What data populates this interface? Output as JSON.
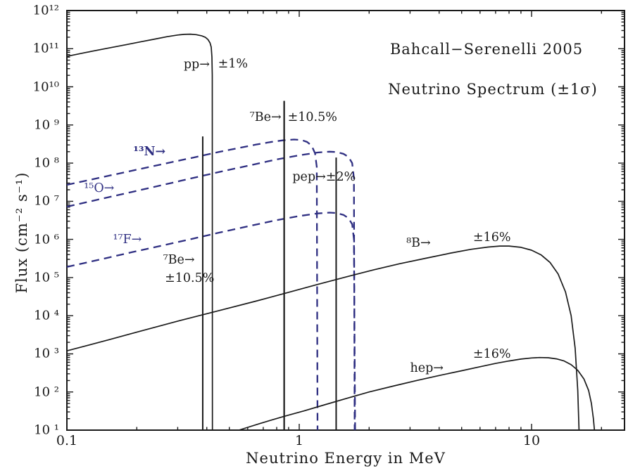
{
  "chart_data": {
    "type": "line",
    "title": "Bahcall−Serenelli 2005",
    "subtitle": "Neutrino Spectrum (±1σ)",
    "xlabel": "Neutrino Energy in MeV",
    "ylabel": "Flux (cm⁻² s⁻¹)",
    "x_scale": "log",
    "y_scale": "log",
    "xlim": [
      0.1,
      25.12
    ],
    "ylim": [
      10.0,
      1000000000000.0
    ],
    "grid": false,
    "legend": "none (in-plot annotations)",
    "colors": {
      "axis": "#1a1a1a",
      "solid_series": "#1a1a1a",
      "cno_series": "#2f2f82"
    },
    "x_ticks": [
      {
        "v": 0.1,
        "label": "0.1"
      },
      {
        "v": 1,
        "label": "1"
      },
      {
        "v": 10,
        "label": "10"
      }
    ],
    "y_ticks": [
      {
        "e": 12,
        "label": "10¹²"
      },
      {
        "e": 11,
        "label": "10¹¹"
      },
      {
        "e": 10,
        "label": "10¹⁰"
      },
      {
        "e": 9,
        "label": "10 ⁹"
      },
      {
        "e": 8,
        "label": "10 ⁸"
      },
      {
        "e": 7,
        "label": "10 ⁷"
      },
      {
        "e": 6,
        "label": "10 ⁶"
      },
      {
        "e": 5,
        "label": "10 ⁵"
      },
      {
        "e": 4,
        "label": "10 ⁴"
      },
      {
        "e": 3,
        "label": "10 ³"
      },
      {
        "e": 2,
        "label": "10 ²"
      },
      {
        "e": 1,
        "label": "10 ¹"
      }
    ],
    "series": [
      {
        "name": "n13",
        "label": "¹³N",
        "style": "dashed",
        "color": "#2f2f82",
        "width": 2.3,
        "uncertainty": null,
        "points": [
          [
            0.1,
            27000000.0
          ],
          [
            0.14,
            42000000.0
          ],
          [
            0.19,
            63000000.0
          ],
          [
            0.26,
            95000000.0
          ],
          [
            0.35,
            140000000.0
          ],
          [
            0.45,
            195000000.0
          ],
          [
            0.55,
            250000000.0
          ],
          [
            0.65,
            305000000.0
          ],
          [
            0.75,
            355000000.0
          ],
          [
            0.85,
            395000000.0
          ],
          [
            0.95,
            415000000.0
          ],
          [
            1.02,
            405000000.0
          ],
          [
            1.08,
            360000000.0
          ],
          [
            1.13,
            290000000.0
          ],
          [
            1.17,
            180000000.0
          ],
          [
            1.19,
            80000000.0
          ],
          [
            1.199,
            10
          ]
        ]
      },
      {
        "name": "o15",
        "label": "¹⁵O",
        "style": "dashed",
        "color": "#2f2f82",
        "width": 2.3,
        "uncertainty": null,
        "points": [
          [
            0.1,
            7200000.0
          ],
          [
            0.14,
            11500000.0
          ],
          [
            0.19,
            17500000.0
          ],
          [
            0.26,
            27000000.0
          ],
          [
            0.35,
            41000000.0
          ],
          [
            0.45,
            58000000.0
          ],
          [
            0.6,
            85000000.0
          ],
          [
            0.8,
            125000000.0
          ],
          [
            1.0,
            160000000.0
          ],
          [
            1.2,
            190000000.0
          ],
          [
            1.35,
            200000000.0
          ],
          [
            1.45,
            195000000.0
          ],
          [
            1.55,
            175000000.0
          ],
          [
            1.63,
            145000000.0
          ],
          [
            1.69,
            100000000.0
          ],
          [
            1.72,
            40000000.0
          ],
          [
            1.732,
            10
          ]
        ]
      },
      {
        "name": "f17",
        "label": "¹⁷F",
        "style": "dashed",
        "color": "#2f2f82",
        "width": 2.3,
        "uncertainty": null,
        "points": [
          [
            0.1,
            190000.0
          ],
          [
            0.14,
            300000.0
          ],
          [
            0.19,
            460000.0
          ],
          [
            0.26,
            700000.0
          ],
          [
            0.35,
            1050000.0
          ],
          [
            0.45,
            1500000.0
          ],
          [
            0.6,
            2200000.0
          ],
          [
            0.8,
            3200000.0
          ],
          [
            1.0,
            4100000.0
          ],
          [
            1.2,
            4800000.0
          ],
          [
            1.35,
            5050000.0
          ],
          [
            1.45,
            4900000.0
          ],
          [
            1.55,
            4400000.0
          ],
          [
            1.63,
            3600000.0
          ],
          [
            1.69,
            2500000.0
          ],
          [
            1.72,
            1000000.0
          ],
          [
            1.74,
            10
          ]
        ]
      },
      {
        "name": "pp",
        "label": "pp",
        "style": "solid",
        "color": "#1a1a1a",
        "width": 1.7,
        "uncertainty": "±1%",
        "points": [
          [
            0.1,
            63000000000.0
          ],
          [
            0.12,
            79000000000.0
          ],
          [
            0.15,
            103000000000.0
          ],
          [
            0.18,
            127000000000.0
          ],
          [
            0.21,
            153000000000.0
          ],
          [
            0.24,
            179000000000.0
          ],
          [
            0.27,
            206000000000.0
          ],
          [
            0.3,
            228000000000.0
          ],
          [
            0.32,
            237000000000.0
          ],
          [
            0.34,
            240000000000.0
          ],
          [
            0.36,
            233000000000.0
          ],
          [
            0.38,
            218000000000.0
          ],
          [
            0.395,
            198000000000.0
          ],
          [
            0.405,
            173000000000.0
          ],
          [
            0.413,
            142000000000.0
          ],
          [
            0.418,
            110000000000.0
          ],
          [
            0.421,
            60000000000.0
          ],
          [
            0.4225,
            20000000000.0
          ],
          [
            0.423,
            10
          ]
        ]
      },
      {
        "name": "b8",
        "label": "⁸B",
        "style": "solid",
        "color": "#1a1a1a",
        "width": 1.7,
        "uncertainty": "±16%",
        "points": [
          [
            0.1,
            1200.0
          ],
          [
            0.15,
            2300.0
          ],
          [
            0.2,
            3700.0
          ],
          [
            0.3,
            7200.0
          ],
          [
            0.45,
            13500.0
          ],
          [
            0.65,
            24000.0
          ],
          [
            0.9,
            41000.0
          ],
          [
            1.2,
            66000.0
          ],
          [
            1.6,
            105000.0
          ],
          [
            2.1,
            160000.0
          ],
          [
            2.7,
            230000.0
          ],
          [
            3.5,
            320000.0
          ],
          [
            4.5,
            440000.0
          ],
          [
            5.5,
            550000.0
          ],
          [
            6.5,
            630000.0
          ],
          [
            7.3,
            670000.0
          ],
          [
            8,
            670000.0
          ],
          [
            9,
            620000.0
          ],
          [
            10,
            520000.0
          ],
          [
            11,
            390000.0
          ],
          [
            12,
            250000.0
          ],
          [
            13,
            125000.0
          ],
          [
            14,
            42000.0
          ],
          [
            14.8,
            10000.0
          ],
          [
            15.4,
            1400.0
          ],
          [
            15.8,
            110.0
          ],
          [
            16,
            10
          ]
        ]
      },
      {
        "name": "hep",
        "label": "hep",
        "style": "solid",
        "color": "#1a1a1a",
        "width": 1.7,
        "uncertainty": "±16%",
        "points": [
          [
            0.55,
            10
          ],
          [
            0.68,
            15
          ],
          [
            0.86,
            23
          ],
          [
            1.05,
            32
          ],
          [
            1.3,
            47
          ],
          [
            1.6,
            68
          ],
          [
            2.0,
            100
          ],
          [
            2.6,
            148
          ],
          [
            3.2,
            200
          ],
          [
            4,
            270
          ],
          [
            5,
            360
          ],
          [
            6,
            460
          ],
          [
            7,
            560
          ],
          [
            8,
            650
          ],
          [
            9,
            730
          ],
          [
            10,
            780
          ],
          [
            10.8,
            800
          ],
          [
            11.8,
            790
          ],
          [
            12.8,
            740
          ],
          [
            13.8,
            650
          ],
          [
            14.8,
            520
          ],
          [
            15.8,
            370
          ],
          [
            16.8,
            220
          ],
          [
            17.6,
            110
          ],
          [
            18.1,
            50
          ],
          [
            18.45,
            20
          ],
          [
            18.65,
            10
          ]
        ]
      }
    ],
    "mono_lines": [
      {
        "name": "be7-384kev",
        "label": "⁷Be",
        "e": 0.3843,
        "flux_top": 500000000.0,
        "color": "#1a1a1a",
        "width": 2.0,
        "uncertainty": "±10.5%"
      },
      {
        "name": "be7-862kev",
        "label": "⁷Be",
        "e": 0.8613,
        "flux_top": 4300000000.0,
        "color": "#1a1a1a",
        "width": 2.2,
        "uncertainty": "±10.5%"
      },
      {
        "name": "pep",
        "label": "pep",
        "e": 1.442,
        "flux_top": 140000000.0,
        "color": "#1a1a1a",
        "width": 2.0,
        "uncertainty": "±2%"
      }
    ],
    "annotations": [
      {
        "name": "pp-label",
        "text": "pp→",
        "e": 0.412,
        "f": 38000000000.0,
        "align": "right"
      },
      {
        "name": "pp-uncertainty",
        "text": "±1%",
        "e": 0.447,
        "f": 40000000000.0,
        "align": "left"
      },
      {
        "name": "be7-label-upper",
        "text": "⁷Be→",
        "e": 0.838,
        "f": 1550000000.0,
        "align": "right"
      },
      {
        "name": "be7-uncertainty-upper",
        "text": "±10.5%",
        "e": 0.892,
        "f": 1550000000.0,
        "align": "left"
      },
      {
        "name": "pep-label",
        "text": "pep→±2%",
        "e": 0.935,
        "f": 43000000.0,
        "align": "left"
      },
      {
        "name": "b8-label",
        "text": "⁸B→",
        "e": 3.68,
        "f": 800000.0,
        "align": "right"
      },
      {
        "name": "b8-uncertainty",
        "text": "±16%",
        "e": 5.6,
        "f": 1100000.0,
        "align": "left"
      },
      {
        "name": "hep-label",
        "text": "hep→",
        "e": 4.18,
        "f": 410.0,
        "align": "right"
      },
      {
        "name": "hep-uncertainty",
        "text": "±16%",
        "e": 5.6,
        "f": 980.0,
        "align": "left"
      },
      {
        "name": "be7-label-lower",
        "text": "⁷Be→",
        "e": 0.355,
        "f": 290000.0,
        "align": "right"
      },
      {
        "name": "be7-uncertainty-lower",
        "text": "±10.5%",
        "e": 0.264,
        "f": 95000.0,
        "align": "left"
      },
      {
        "name": "n13-label",
        "text": "¹³N→",
        "e": 0.266,
        "f": 195000000.0,
        "align": "right",
        "cno": true,
        "bold": true
      },
      {
        "name": "o15-label",
        "text": "¹⁵O→",
        "e": 0.16,
        "f": 22000000.0,
        "align": "right",
        "cno": true
      },
      {
        "name": "f17-label",
        "text": "¹⁷F→",
        "e": 0.21,
        "f": 970000.0,
        "align": "right",
        "cno": true
      }
    ]
  }
}
